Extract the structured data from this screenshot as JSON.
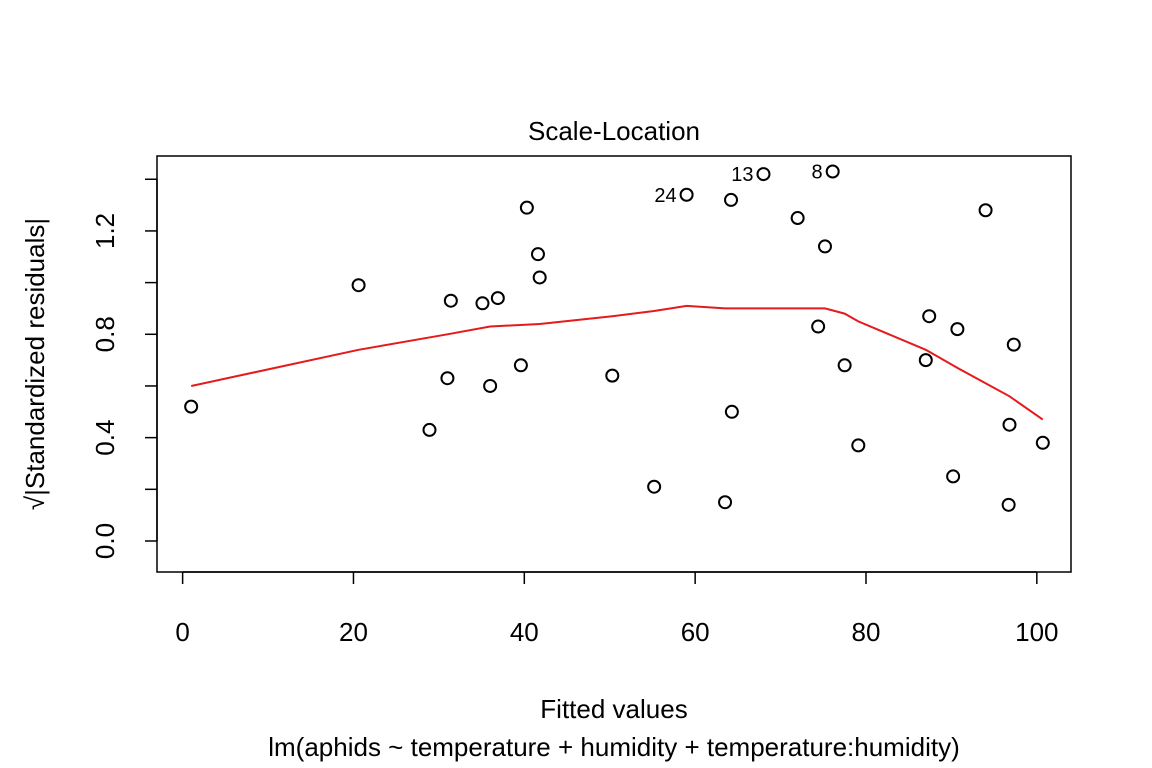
{
  "chart_data": {
    "type": "scatter",
    "title": "Scale-Location",
    "xlabel": "Fitted values",
    "subtitle": "lm(aphids ~ temperature + humidity + temperature:humidity)",
    "ylabel": "√|Standardized residuals|",
    "xlim": [
      -3,
      104
    ],
    "ylim": [
      -0.12,
      1.49
    ],
    "x_ticks": [
      0,
      20,
      40,
      60,
      80,
      100
    ],
    "y_ticks": [
      0.0,
      0.4,
      0.8,
      1.2
    ],
    "y_tick_labels": [
      "0.0",
      "0.4",
      "0.8",
      "1.2"
    ],
    "grid": false,
    "points": [
      {
        "x": 1.0,
        "y": 0.52
      },
      {
        "x": 20.6,
        "y": 0.99
      },
      {
        "x": 28.9,
        "y": 0.43
      },
      {
        "x": 31.0,
        "y": 0.63
      },
      {
        "x": 31.4,
        "y": 0.93
      },
      {
        "x": 35.1,
        "y": 0.92
      },
      {
        "x": 36.0,
        "y": 0.6
      },
      {
        "x": 36.9,
        "y": 0.94
      },
      {
        "x": 39.6,
        "y": 0.68
      },
      {
        "x": 40.3,
        "y": 1.29
      },
      {
        "x": 41.6,
        "y": 1.11
      },
      {
        "x": 41.8,
        "y": 1.02
      },
      {
        "x": 50.3,
        "y": 0.64
      },
      {
        "x": 55.2,
        "y": 0.21
      },
      {
        "x": 59.0,
        "y": 1.34,
        "label": "24"
      },
      {
        "x": 63.5,
        "y": 0.15
      },
      {
        "x": 64.2,
        "y": 1.32
      },
      {
        "x": 64.3,
        "y": 0.5
      },
      {
        "x": 68.0,
        "y": 1.42,
        "label": "13"
      },
      {
        "x": 72.0,
        "y": 1.25
      },
      {
        "x": 74.4,
        "y": 0.83
      },
      {
        "x": 75.2,
        "y": 1.14
      },
      {
        "x": 76.1,
        "y": 1.43,
        "label": "8"
      },
      {
        "x": 77.5,
        "y": 0.68
      },
      {
        "x": 79.1,
        "y": 0.37
      },
      {
        "x": 87.0,
        "y": 0.7
      },
      {
        "x": 87.4,
        "y": 0.87
      },
      {
        "x": 90.2,
        "y": 0.25
      },
      {
        "x": 90.7,
        "y": 0.82
      },
      {
        "x": 94.0,
        "y": 1.28
      },
      {
        "x": 96.7,
        "y": 0.14
      },
      {
        "x": 96.8,
        "y": 0.45
      },
      {
        "x": 97.3,
        "y": 0.76
      },
      {
        "x": 100.7,
        "y": 0.38
      }
    ],
    "smooth_line": {
      "color": "#e41a1c",
      "x": [
        1.0,
        20.6,
        31.0,
        36.0,
        41.8,
        50.3,
        55.2,
        59.0,
        63.5,
        68.0,
        72.0,
        75.2,
        77.5,
        79.1,
        87.0,
        90.7,
        96.8,
        100.7
      ],
      "y": [
        0.6,
        0.74,
        0.8,
        0.83,
        0.84,
        0.87,
        0.89,
        0.91,
        0.9,
        0.9,
        0.9,
        0.9,
        0.88,
        0.85,
        0.74,
        0.67,
        0.56,
        0.47
      ]
    }
  }
}
